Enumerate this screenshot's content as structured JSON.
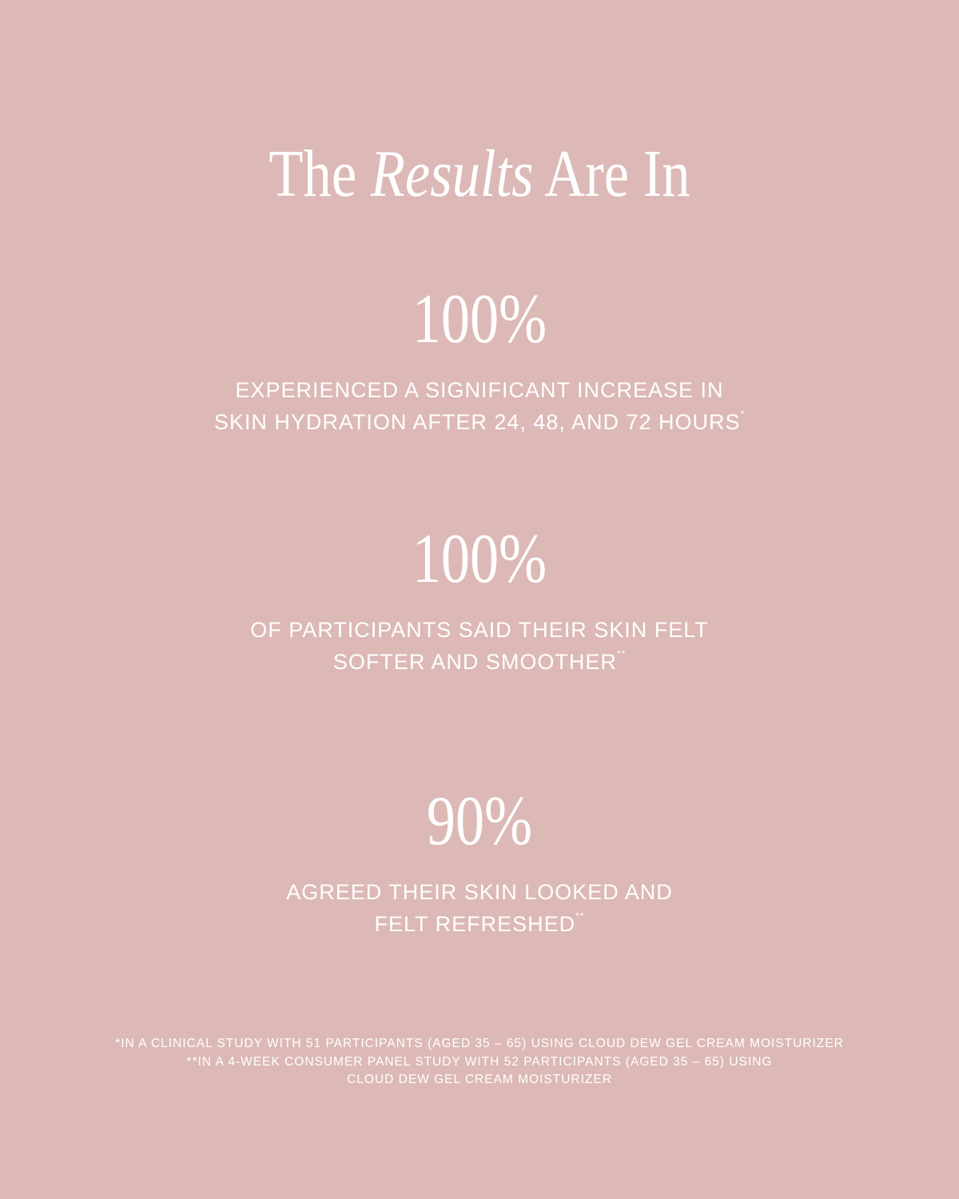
{
  "title": {
    "before": "The ",
    "italic": "Results",
    "after": " Are In"
  },
  "stats": [
    {
      "value": "100%",
      "lines": [
        "EXPERIENCED A SIGNIFICANT INCREASE IN",
        "SKIN HYDRATION AFTER 24, 48, AND 72 HOURS"
      ],
      "mark": "*"
    },
    {
      "value": "100%",
      "lines": [
        "OF PARTICIPANTS SAID THEIR SKIN FELT",
        "SOFTER AND SMOOTHER"
      ],
      "mark": "**"
    },
    {
      "value": "90%",
      "lines": [
        "AGREED THEIR SKIN LOOKED AND",
        "FELT REFRESHED"
      ],
      "mark": "**"
    }
  ],
  "footnotes": [
    "*IN A CLINICAL STUDY WITH 51 PARTICIPANTS (AGED 35 – 65) USING CLOUD DEW GEL CREAM MOISTURIZER",
    "**IN A 4-WEEK CONSUMER PANEL STUDY WITH 52 PARTICIPANTS (AGED 35 – 65) USING",
    "CLOUD DEW GEL CREAM MOISTURIZER"
  ],
  "colors": {
    "background": "#dcb9b6",
    "text": "#ffffff"
  }
}
